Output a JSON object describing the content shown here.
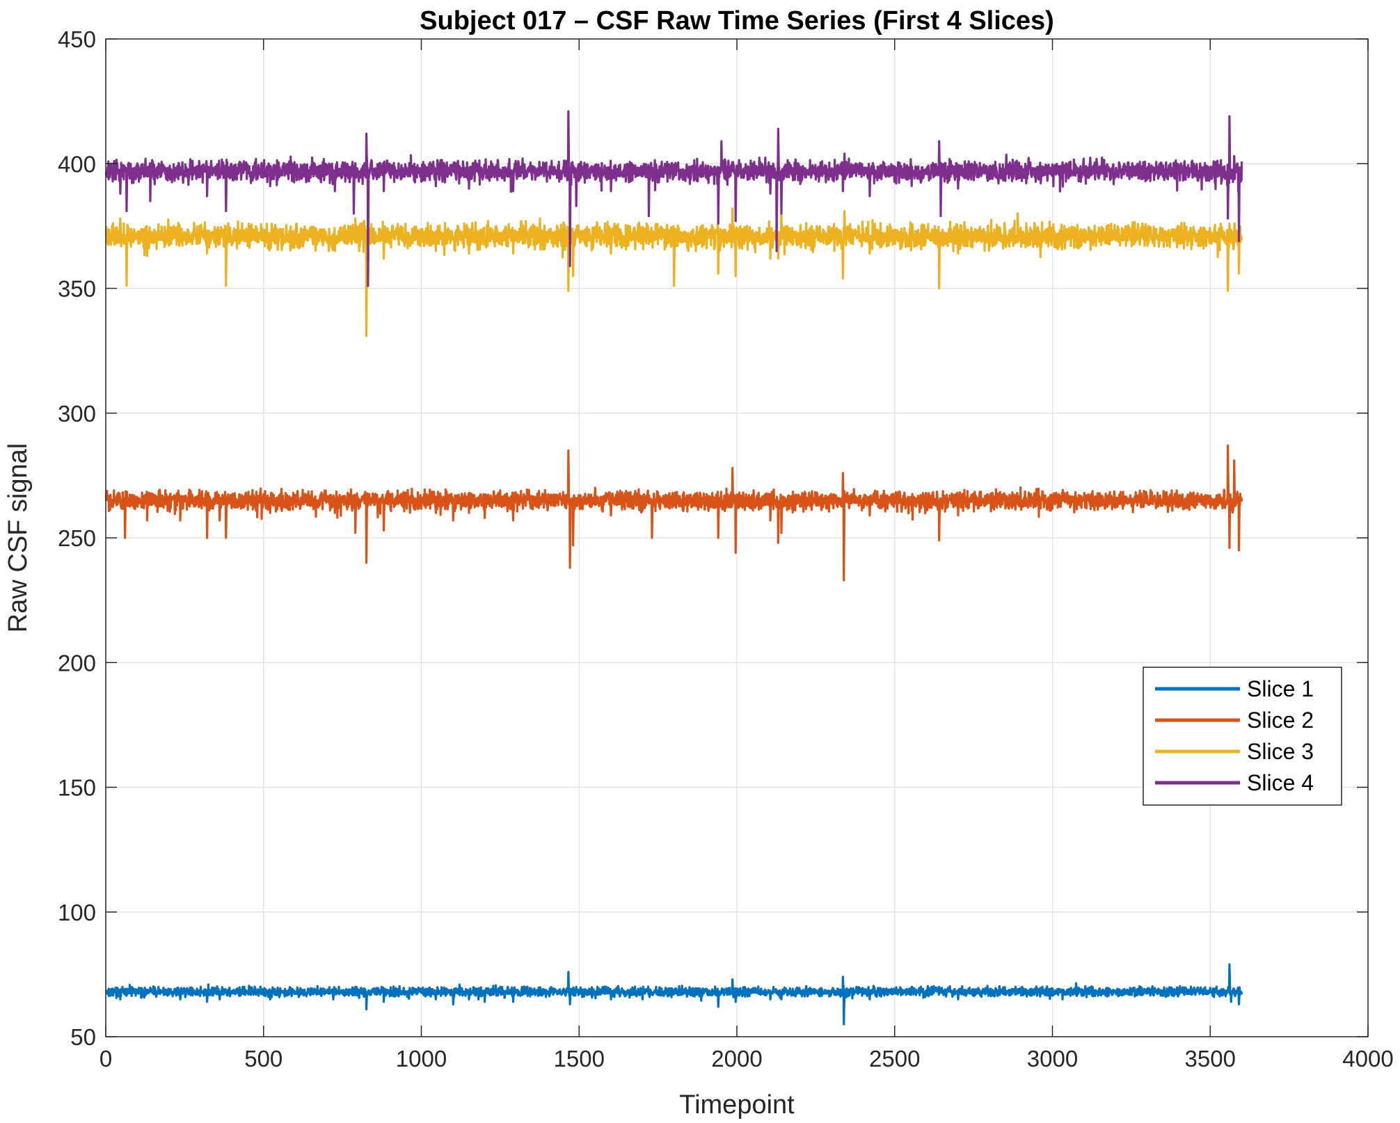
{
  "chart_data": {
    "type": "line",
    "title": "Subject 017 – CSF Raw Time Series (First 4 Slices)",
    "xlabel": "Timepoint",
    "ylabel": "Raw CSF signal",
    "xlim": [
      0,
      4000
    ],
    "ylim": [
      50,
      450
    ],
    "xticks": [
      0,
      500,
      1000,
      1500,
      2000,
      2500,
      3000,
      3500,
      4000
    ],
    "yticks": [
      50,
      100,
      150,
      200,
      250,
      300,
      350,
      400,
      450
    ],
    "xtick_labels": [
      "0",
      "500",
      "1000",
      "1500",
      "2000",
      "2500",
      "3000",
      "3500",
      "4000"
    ],
    "ytick_labels": [
      "50",
      "100",
      "150",
      "200",
      "250",
      "300",
      "350",
      "400",
      "450"
    ],
    "grid": true,
    "legend_position": "lower-right",
    "n_timepoints": 3600,
    "series": [
      {
        "name": "Slice 1",
        "color": "#0072BD",
        "baseline": 68,
        "noise": 0.9,
        "spikes": [
          [
            45,
            -3
          ],
          [
            235,
            -3
          ],
          [
            320,
            -4
          ],
          [
            360,
            -3
          ],
          [
            520,
            -3
          ],
          [
            720,
            -3
          ],
          [
            790,
            2
          ],
          [
            825,
            -7
          ],
          [
            880,
            -4
          ],
          [
            1045,
            -3
          ],
          [
            1100,
            -5
          ],
          [
            1150,
            -3
          ],
          [
            1200,
            -4
          ],
          [
            1255,
            2
          ],
          [
            1290,
            -4
          ],
          [
            1465,
            8
          ],
          [
            1470,
            -5
          ],
          [
            1490,
            2
          ],
          [
            1600,
            -3
          ],
          [
            1700,
            -3
          ],
          [
            1940,
            -6
          ],
          [
            1985,
            5
          ],
          [
            1995,
            -4
          ],
          [
            2105,
            -3
          ],
          [
            2140,
            -3
          ],
          [
            2335,
            6
          ],
          [
            2338,
            -13
          ],
          [
            2420,
            -3
          ],
          [
            2640,
            2
          ],
          [
            2700,
            -3
          ],
          [
            3560,
            11
          ],
          [
            3565,
            -4
          ],
          [
            3590,
            -5
          ]
        ]
      },
      {
        "name": "Slice 2",
        "color": "#D95319",
        "baseline": 265,
        "noise": 1.8,
        "spikes": [
          [
            60,
            -15
          ],
          [
            130,
            -8
          ],
          [
            235,
            -8
          ],
          [
            320,
            -15
          ],
          [
            360,
            -8
          ],
          [
            380,
            -15
          ],
          [
            520,
            -5
          ],
          [
            725,
            -5
          ],
          [
            790,
            -13
          ],
          [
            825,
            -25
          ],
          [
            880,
            -12
          ],
          [
            1045,
            -5
          ],
          [
            1100,
            -8
          ],
          [
            1150,
            -5
          ],
          [
            1200,
            -7
          ],
          [
            1290,
            -8
          ],
          [
            1465,
            20
          ],
          [
            1470,
            -27
          ],
          [
            1480,
            -18
          ],
          [
            1600,
            -6
          ],
          [
            1730,
            -15
          ],
          [
            1940,
            -15
          ],
          [
            1985,
            13
          ],
          [
            1995,
            -21
          ],
          [
            2105,
            -8
          ],
          [
            2130,
            -17
          ],
          [
            2140,
            -13
          ],
          [
            2335,
            11
          ],
          [
            2338,
            -32
          ],
          [
            2420,
            -6
          ],
          [
            2640,
            -16
          ],
          [
            2700,
            -6
          ],
          [
            3555,
            22
          ],
          [
            3560,
            -19
          ],
          [
            3575,
            16
          ],
          [
            3590,
            -20
          ]
        ]
      },
      {
        "name": "Slice 3",
        "color": "#EDB120",
        "baseline": 371,
        "noise": 2.3,
        "spikes": [
          [
            45,
            7
          ],
          [
            65,
            -20
          ],
          [
            130,
            -8
          ],
          [
            320,
            -7
          ],
          [
            380,
            -20
          ],
          [
            520,
            -5
          ],
          [
            725,
            -6
          ],
          [
            790,
            7
          ],
          [
            825,
            -40
          ],
          [
            830,
            -20
          ],
          [
            880,
            -9
          ],
          [
            1045,
            -6
          ],
          [
            1150,
            -7
          ],
          [
            1210,
            6
          ],
          [
            1290,
            -7
          ],
          [
            1465,
            -22
          ],
          [
            1470,
            7
          ],
          [
            1480,
            -16
          ],
          [
            1600,
            -7
          ],
          [
            1800,
            -20
          ],
          [
            1940,
            -15
          ],
          [
            1985,
            11
          ],
          [
            1995,
            -16
          ],
          [
            2105,
            -9
          ],
          [
            2130,
            -9
          ],
          [
            2140,
            10
          ],
          [
            2335,
            -17
          ],
          [
            2340,
            10
          ],
          [
            2420,
            -7
          ],
          [
            2640,
            -21
          ],
          [
            2700,
            -7
          ],
          [
            3555,
            -22
          ],
          [
            3560,
            5
          ],
          [
            3590,
            -15
          ]
        ]
      },
      {
        "name": "Slice 4",
        "color": "#7E2F8E",
        "baseline": 397,
        "noise": 2.0,
        "spikes": [
          [
            45,
            -9
          ],
          [
            65,
            -16
          ],
          [
            140,
            -12
          ],
          [
            320,
            -10
          ],
          [
            380,
            -16
          ],
          [
            520,
            -6
          ],
          [
            725,
            -8
          ],
          [
            785,
            -17
          ],
          [
            825,
            15
          ],
          [
            830,
            -46
          ],
          [
            880,
            -8
          ],
          [
            1045,
            -6
          ],
          [
            1150,
            -7
          ],
          [
            1290,
            -8
          ],
          [
            1465,
            24
          ],
          [
            1470,
            -38
          ],
          [
            1490,
            -14
          ],
          [
            1600,
            -8
          ],
          [
            1720,
            -18
          ],
          [
            1940,
            -21
          ],
          [
            1950,
            12
          ],
          [
            1995,
            -20
          ],
          [
            2105,
            -9
          ],
          [
            2125,
            -32
          ],
          [
            2130,
            17
          ],
          [
            2140,
            -17
          ],
          [
            2335,
            -8
          ],
          [
            2340,
            7
          ],
          [
            2420,
            -10
          ],
          [
            2640,
            12
          ],
          [
            2645,
            -18
          ],
          [
            2700,
            -7
          ],
          [
            3555,
            -19
          ],
          [
            3560,
            22
          ],
          [
            3575,
            6
          ],
          [
            3590,
            -28
          ]
        ]
      }
    ]
  }
}
